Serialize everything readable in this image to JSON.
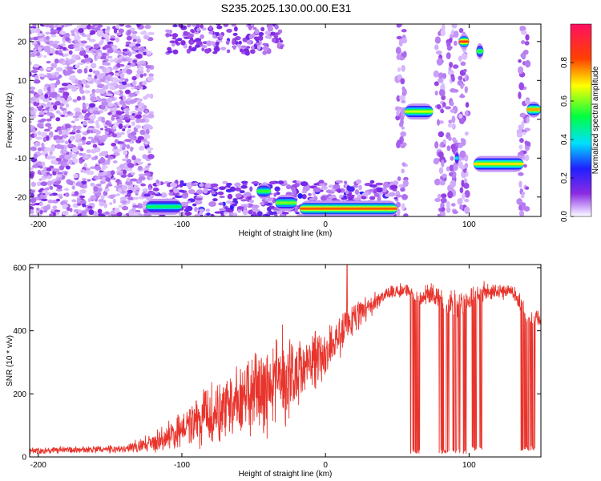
{
  "title": "S235.2025.130.00.00.E31",
  "colors": {
    "snr_line": "#e8342c",
    "frame": "#000000"
  },
  "chart_data": [
    {
      "type": "heatmap",
      "xlabel": "Height of straight line (km)",
      "ylabel": "Frequency (Hz)",
      "xlim": [
        -206,
        150
      ],
      "ylim": [
        -25,
        24.5
      ],
      "xticks": [
        -200,
        -100,
        0,
        100
      ],
      "yticks": [
        -20,
        -10,
        0,
        10,
        20
      ],
      "colorbar": {
        "label": "Normalized spectral amplitude",
        "range": [
          0.0,
          1.0
        ],
        "ticks": [
          "0.0",
          "0.2",
          "0.4",
          "0.6",
          "0.8"
        ],
        "tick_values": [
          0.0,
          0.2,
          0.4,
          0.6,
          0.8
        ],
        "colormap": "hsv_reversed"
      },
      "traces": [
        {
          "x_start": -125,
          "x_end": -100,
          "freq": -22.5,
          "amp": 0.5
        },
        {
          "x_start": -48,
          "x_end": -38,
          "freq": -18.5,
          "amp": 0.55
        },
        {
          "x_start": -35,
          "x_end": -20,
          "freq": -21.5,
          "amp": 0.6
        },
        {
          "x_start": -18,
          "x_end": 50,
          "freq": -23.0,
          "amp": 0.8
        },
        {
          "x_start": 55,
          "x_end": 75,
          "freq": 2.0,
          "amp": 0.65
        },
        {
          "x_start": 93,
          "x_end": 100,
          "freq": 20.0,
          "amp": 0.85
        },
        {
          "x_start": 105,
          "x_end": 110,
          "freq": 17.5,
          "amp": 0.55
        },
        {
          "x_start": 90,
          "x_end": 93,
          "freq": -10.0,
          "amp": 0.4
        },
        {
          "x_start": 103,
          "x_end": 138,
          "freq": -11.5,
          "amp": 0.7
        },
        {
          "x_start": 140,
          "x_end": 150,
          "freq": 2.5,
          "amp": 0.75
        }
      ]
    },
    {
      "type": "line",
      "xlabel": "Height of straight line (km)",
      "ylabel": "SNR (10 * v/v)",
      "xlim": [
        -206,
        150
      ],
      "ylim": [
        0,
        610
      ],
      "xticks": [
        -200,
        -100,
        0,
        100
      ],
      "yticks": [
        0,
        200,
        400,
        600
      ],
      "envelope": {
        "x": [
          -206,
          -140,
          -120,
          -100,
          -80,
          -60,
          -40,
          -20,
          0,
          20,
          40,
          55,
          60,
          65,
          70,
          90,
          110,
          130,
          140,
          150
        ],
        "mean": [
          20,
          25,
          45,
          90,
          130,
          170,
          210,
          270,
          330,
          440,
          510,
          530,
          520,
          500,
          520,
          480,
          520,
          530,
          450,
          430
        ],
        "amplitude": [
          12,
          15,
          35,
          70,
          110,
          140,
          170,
          150,
          90,
          60,
          30,
          25,
          25,
          30,
          40,
          60,
          40,
          30,
          40,
          40
        ]
      },
      "dropouts": [
        {
          "x_start": 59,
          "x_end": 66,
          "min": 10
        },
        {
          "x_start": 79,
          "x_end": 98,
          "min": 10
        },
        {
          "x_start": 101,
          "x_end": 109,
          "min": 20
        },
        {
          "x_start": 136,
          "x_end": 146,
          "min": 20
        }
      ],
      "spikes": [
        {
          "x": 15,
          "y": 610
        },
        {
          "x": -30,
          "y": 420
        }
      ]
    }
  ]
}
